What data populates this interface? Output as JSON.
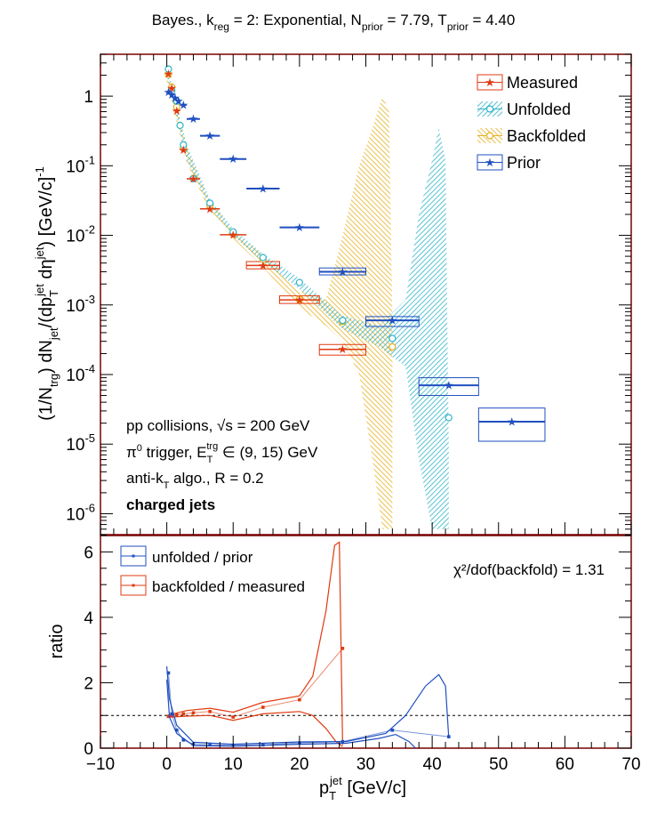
{
  "title": {
    "pre": "Bayes., k",
    "k_sub": "reg",
    "mid1": " = 2: Exponential, N",
    "n_sub": "prior",
    "mid2": " = 7.79, T",
    "t_sub": "prior",
    "post": " = 4.40"
  },
  "colors": {
    "measured": "#e03a10",
    "unfolded": "#2fb4c8",
    "backfolded": "#e8b020",
    "prior": "#1f4fc0",
    "frame": "#7a0000"
  },
  "top_panel": {
    "ylabel": "(1/N_trg) dN_jet/(dp_T^jet dη^jet) [GeV/c]^-1",
    "ylabel_parts": {
      "a": "(1/N",
      "a_sub": "trg",
      "b": ") dN",
      "b_sub": "jet",
      "c": "/(dp",
      "c_sub": "T",
      "c_sup": "jet",
      "d": " dη",
      "d_sup": "jet",
      "e": ") [GeV/c]",
      "e_sup": "-1"
    },
    "yticks": [
      {
        "label": "10",
        "exp": "-6",
        "value": 1e-06
      },
      {
        "label": "10",
        "exp": "-5",
        "value": 1e-05
      },
      {
        "label": "10",
        "exp": "-4",
        "value": 0.0001
      },
      {
        "label": "10",
        "exp": "-3",
        "value": 0.001
      },
      {
        "label": "10",
        "exp": "-2",
        "value": 0.01
      },
      {
        "label": "10",
        "exp": "-1",
        "value": 0.1
      },
      {
        "label": "1",
        "exp": "",
        "value": 1
      }
    ],
    "legend": [
      "Measured",
      "Unfolded",
      "Backfolded",
      "Prior"
    ],
    "annotations": {
      "line1": "pp collisions, √s = 200 GeV",
      "line2_a": "π",
      "line2_sup": "0",
      "line2_b": " trigger, E",
      "line2_sub": "T",
      "line2_sup2": "trg",
      "line2_c": " ∈ (9, 15) GeV",
      "line3_a": "anti-k",
      "line3_sub": "T",
      "line3_b": " algo., R = 0.2",
      "line4": "charged jets"
    }
  },
  "bottom_panel": {
    "ylabel": "ratio",
    "xlabel_a": "p",
    "xlabel_sub": "T",
    "xlabel_sup": "jet",
    "xlabel_b": " [GeV/c]",
    "legend": [
      "unfolded / prior",
      "backfolded / measured"
    ],
    "chi2_text": "χ²/dof(backfold) = 1.31",
    "yticks": [
      "0",
      "2",
      "4",
      "6"
    ],
    "xticks": [
      "−10",
      "0",
      "10",
      "20",
      "30",
      "40",
      "50",
      "60",
      "70"
    ]
  },
  "chart_data": [
    {
      "type": "scatter",
      "title": "Bayes., k_reg = 2: Exponential, N_prior = 7.79, T_prior = 4.40",
      "log_y": true,
      "xlim": [
        -10,
        70
      ],
      "ylim": [
        5e-07,
        4
      ],
      "series": [
        {
          "name": "Measured",
          "points": [
            {
              "x": 0.25,
              "y": 2.1,
              "xlo": 0,
              "xhi": 0.5
            },
            {
              "x": 0.75,
              "y": 1.3,
              "xlo": 0.5,
              "xhi": 1.0
            },
            {
              "x": 1.5,
              "y": 0.62,
              "xlo": 1.0,
              "xhi": 2.0
            },
            {
              "x": 2.5,
              "y": 0.17,
              "xlo": 2.0,
              "xhi": 3.0
            },
            {
              "x": 4.0,
              "y": 0.065,
              "xlo": 3.0,
              "xhi": 5.0
            },
            {
              "x": 6.5,
              "y": 0.024,
              "xlo": 5.0,
              "xhi": 8.0
            },
            {
              "x": 10.0,
              "y": 0.0102,
              "xlo": 8.0,
              "xhi": 12.0
            },
            {
              "x": 14.5,
              "y": 0.0037,
              "xlo": 12.0,
              "xhi": 17.0
            },
            {
              "x": 20.0,
              "y": 0.00118,
              "xlo": 17.0,
              "xhi": 23.0
            },
            {
              "x": 26.5,
              "y": 0.00023,
              "xlo": 23.0,
              "xhi": 30.0
            }
          ]
        },
        {
          "name": "Unfolded",
          "points": [
            {
              "x": 0.25,
              "y": 2.45
            },
            {
              "x": 0.75,
              "y": 1.2
            },
            {
              "x": 1.5,
              "y": 0.85
            },
            {
              "x": 2.0,
              "y": 0.38
            },
            {
              "x": 2.5,
              "y": 0.2
            },
            {
              "x": 4.0,
              "y": 0.065
            },
            {
              "x": 6.5,
              "y": 0.029
            },
            {
              "x": 10.0,
              "y": 0.0112
            },
            {
              "x": 14.5,
              "y": 0.0048
            },
            {
              "x": 20.0,
              "y": 0.0021
            },
            {
              "x": 26.5,
              "y": 0.0006
            },
            {
              "x": 34.0,
              "y": 0.00033
            },
            {
              "x": 42.5,
              "y": 2.4e-05
            }
          ],
          "band": [
            {
              "x": 0,
              "lo": 2.0,
              "hi": 2.8
            },
            {
              "x": 3,
              "lo": 0.12,
              "hi": 0.2
            },
            {
              "x": 6.5,
              "lo": 0.025,
              "hi": 0.033
            },
            {
              "x": 10,
              "lo": 0.0098,
              "hi": 0.0125
            },
            {
              "x": 14.5,
              "lo": 0.0041,
              "hi": 0.0054
            },
            {
              "x": 20,
              "lo": 0.0017,
              "hi": 0.0024
            },
            {
              "x": 26.5,
              "lo": 0.00045,
              "hi": 0.0007
            },
            {
              "x": 32,
              "lo": 0.00025,
              "hi": 0.0005
            },
            {
              "x": 36,
              "lo": 0.00013,
              "hi": 0.0012
            },
            {
              "x": 38,
              "lo": 6e-06,
              "hi": 0.02
            },
            {
              "x": 40,
              "lo": 6e-07,
              "hi": 0.12
            },
            {
              "x": 41,
              "lo": 6e-07,
              "hi": 0.35
            },
            {
              "x": 42,
              "lo": 6e-07,
              "hi": 0.12
            },
            {
              "x": 42.5,
              "lo": 6e-07,
              "hi": 8e-06
            }
          ]
        },
        {
          "name": "Backfolded",
          "points": [
            {
              "x": 0.25,
              "y": 2.05
            },
            {
              "x": 0.75,
              "y": 1.35
            },
            {
              "x": 1.5,
              "y": 0.7
            },
            {
              "x": 2.5,
              "y": 0.18
            },
            {
              "x": 4.0,
              "y": 0.066
            },
            {
              "x": 6.5,
              "y": 0.027
            },
            {
              "x": 10.0,
              "y": 0.0105
            },
            {
              "x": 14.5,
              "y": 0.0045
            },
            {
              "x": 20.0,
              "y": 0.0012
            },
            {
              "x": 26.5,
              "y": 0.00058
            },
            {
              "x": 34.0,
              "y": 0.00025
            }
          ],
          "band": [
            {
              "x": 0,
              "lo": 1.6,
              "hi": 2.5
            },
            {
              "x": 3,
              "lo": 0.11,
              "hi": 0.18
            },
            {
              "x": 6.5,
              "lo": 0.022,
              "hi": 0.03
            },
            {
              "x": 10,
              "lo": 0.009,
              "hi": 0.012
            },
            {
              "x": 14.5,
              "lo": 0.0035,
              "hi": 0.005
            },
            {
              "x": 20,
              "lo": 0.0009,
              "hi": 0.0016
            },
            {
              "x": 24,
              "lo": 0.0005,
              "hi": 0.0012
            },
            {
              "x": 26.5,
              "lo": 0.0003,
              "hi": 0.01
            },
            {
              "x": 29,
              "lo": 0.0001,
              "hi": 0.1
            },
            {
              "x": 31,
              "lo": 6e-06,
              "hi": 0.35
            },
            {
              "x": 32.5,
              "lo": 6e-07,
              "hi": 1.0
            },
            {
              "x": 33.5,
              "lo": 6e-07,
              "hi": 0.6
            },
            {
              "x": 34,
              "lo": 6e-07,
              "hi": 0.0005
            }
          ]
        },
        {
          "name": "Prior",
          "points": [
            {
              "x": 0.25,
              "y": 1.15,
              "xlo": 0,
              "xhi": 0.5
            },
            {
              "x": 0.75,
              "y": 1.05,
              "xlo": 0.5,
              "xhi": 1.0
            },
            {
              "x": 1.25,
              "y": 0.95,
              "xlo": 1.0,
              "xhi": 1.5
            },
            {
              "x": 1.75,
              "y": 0.85,
              "xlo": 1.5,
              "xhi": 2.0
            },
            {
              "x": 2.5,
              "y": 0.75,
              "xlo": 2.0,
              "xhi": 3.0
            },
            {
              "x": 4.0,
              "y": 0.47,
              "xlo": 3.0,
              "xhi": 5.0
            },
            {
              "x": 6.5,
              "y": 0.27,
              "xlo": 5.0,
              "xhi": 8.0
            },
            {
              "x": 10.0,
              "y": 0.125,
              "xlo": 8.0,
              "xhi": 12.0
            },
            {
              "x": 14.5,
              "y": 0.047,
              "xlo": 12.0,
              "xhi": 17.0
            },
            {
              "x": 20.0,
              "y": 0.013,
              "xlo": 17.0,
              "xhi": 23.0
            },
            {
              "x": 26.5,
              "y": 0.003,
              "xlo": 23.0,
              "xhi": 30.0
            },
            {
              "x": 34.0,
              "y": 0.0006,
              "xlo": 30.0,
              "xhi": 38.0
            },
            {
              "x": 42.5,
              "y": 7e-05,
              "xlo": 38.0,
              "xhi": 47.0
            },
            {
              "x": 52.0,
              "y": 2.1e-05,
              "xlo": 47.0,
              "xhi": 57.0
            }
          ],
          "boxes": [
            {
              "xlo": 23.0,
              "xhi": 30.0,
              "ylo": 0.0027,
              "yhi": 0.0034
            },
            {
              "xlo": 30.0,
              "xhi": 38.0,
              "ylo": 0.00049,
              "yhi": 0.00068
            },
            {
              "xlo": 38.0,
              "xhi": 47.0,
              "ylo": 5e-05,
              "yhi": 9e-05
            },
            {
              "xlo": 47.0,
              "xhi": 57.0,
              "ylo": 1.1e-05,
              "yhi": 3.3e-05
            }
          ]
        }
      ],
      "measured_boxes": [
        {
          "xlo": 12.0,
          "xhi": 17.0,
          "ylo": 0.0033,
          "yhi": 0.0042
        },
        {
          "xlo": 17.0,
          "xhi": 23.0,
          "ylo": 0.00105,
          "yhi": 0.00135
        },
        {
          "xlo": 23.0,
          "xhi": 30.0,
          "ylo": 0.00019,
          "yhi": 0.00027
        }
      ]
    },
    {
      "type": "line",
      "xlim": [
        -10,
        70
      ],
      "ylim": [
        0,
        6.5
      ],
      "xlabel": "p_T^jet [GeV/c]",
      "ylabel": "ratio",
      "reference_line": 1.0,
      "series": [
        {
          "name": "unfolded / prior",
          "points": [
            {
              "x": 0.25,
              "y": 2.3
            },
            {
              "x": 0.75,
              "y": 1.05
            },
            {
              "x": 1.5,
              "y": 0.55
            },
            {
              "x": 2.5,
              "y": 0.25
            },
            {
              "x": 4.0,
              "y": 0.12
            },
            {
              "x": 6.5,
              "y": 0.1
            },
            {
              "x": 10.0,
              "y": 0.09
            },
            {
              "x": 14.5,
              "y": 0.1
            },
            {
              "x": 20.0,
              "y": 0.16
            },
            {
              "x": 26.5,
              "y": 0.2
            },
            {
              "x": 34.0,
              "y": 0.55
            },
            {
              "x": 42.5,
              "y": 0.35
            }
          ],
          "band_upper": [
            {
              "x": 0,
              "y": 2.5
            },
            {
              "x": 0.4,
              "y": 1.5
            },
            {
              "x": 1.5,
              "y": 0.7
            },
            {
              "x": 4,
              "y": 0.18
            },
            {
              "x": 10,
              "y": 0.12
            },
            {
              "x": 20,
              "y": 0.19
            },
            {
              "x": 27,
              "y": 0.2
            },
            {
              "x": 33,
              "y": 0.45
            },
            {
              "x": 36,
              "y": 1.0
            },
            {
              "x": 39,
              "y": 1.9
            },
            {
              "x": 41,
              "y": 2.25
            },
            {
              "x": 42,
              "y": 1.9
            },
            {
              "x": 42.5,
              "y": 0.3
            }
          ],
          "band_lower": [
            {
              "x": 0,
              "y": 2.1
            },
            {
              "x": 0.4,
              "y": 0.95
            },
            {
              "x": 1.5,
              "y": 0.45
            },
            {
              "x": 4,
              "y": 0.08
            },
            {
              "x": 10,
              "y": 0.06
            },
            {
              "x": 20,
              "y": 0.12
            },
            {
              "x": 27,
              "y": 0.15
            },
            {
              "x": 32,
              "y": 0.3
            },
            {
              "x": 34.5,
              "y": 0.42
            },
            {
              "x": 36.5,
              "y": 0.2
            },
            {
              "x": 37.5,
              "y": 0.0
            }
          ]
        },
        {
          "name": "backfolded / measured",
          "points": [
            {
              "x": 0.25,
              "y": 0.97
            },
            {
              "x": 0.75,
              "y": 1.0
            },
            {
              "x": 1.5,
              "y": 1.02
            },
            {
              "x": 2.5,
              "y": 1.05
            },
            {
              "x": 4.0,
              "y": 1.08
            },
            {
              "x": 6.5,
              "y": 1.12
            },
            {
              "x": 10.0,
              "y": 0.95
            },
            {
              "x": 14.5,
              "y": 1.25
            },
            {
              "x": 20.0,
              "y": 1.48
            },
            {
              "x": 26.5,
              "y": 3.05
            }
          ],
          "band_upper": [
            {
              "x": 0,
              "y": 1.0
            },
            {
              "x": 3,
              "y": 1.15
            },
            {
              "x": 6.5,
              "y": 1.22
            },
            {
              "x": 10,
              "y": 1.1
            },
            {
              "x": 14.5,
              "y": 1.4
            },
            {
              "x": 20,
              "y": 1.6
            },
            {
              "x": 22,
              "y": 2.2
            },
            {
              "x": 24,
              "y": 4.2
            },
            {
              "x": 25.3,
              "y": 6.2
            },
            {
              "x": 26,
              "y": 6.3
            },
            {
              "x": 26.5,
              "y": 0.1
            }
          ],
          "band_lower": [
            {
              "x": 0,
              "y": 0.94
            },
            {
              "x": 3,
              "y": 0.98
            },
            {
              "x": 6.5,
              "y": 1.0
            },
            {
              "x": 10,
              "y": 0.85
            },
            {
              "x": 14.5,
              "y": 1.05
            },
            {
              "x": 20,
              "y": 1.12
            },
            {
              "x": 22,
              "y": 1.0
            },
            {
              "x": 24,
              "y": 0.6
            },
            {
              "x": 25.5,
              "y": 0.2
            },
            {
              "x": 26.5,
              "y": 0.05
            }
          ]
        }
      ]
    }
  ]
}
